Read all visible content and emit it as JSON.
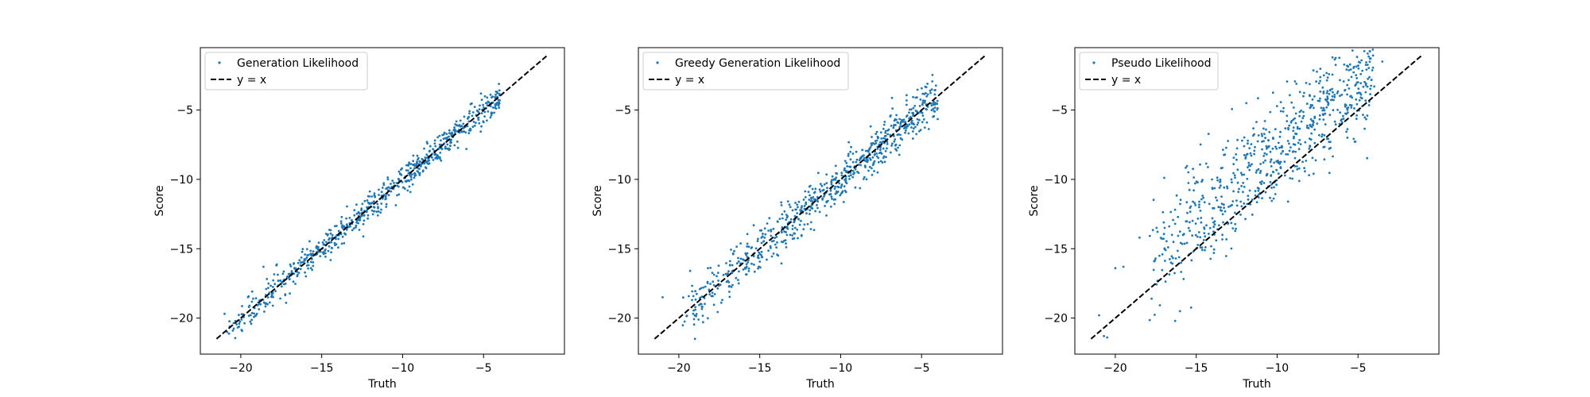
{
  "chart_data": [
    {
      "type": "scatter",
      "xlabel": "Truth",
      "ylabel": "Score",
      "xlim": [
        -22.5,
        0.0
      ],
      "ylim": [
        -22.6,
        -0.5
      ],
      "xticks": [
        -20,
        -15,
        -10,
        -5
      ],
      "yticks": [
        -20,
        -15,
        -10,
        -5
      ],
      "legend_placement": "upper-left",
      "series": [
        {
          "name": "Generation Likelihood",
          "kind": "scatter",
          "color": "#1f77b4",
          "x_range": [
            -21,
            -4
          ],
          "slope": 1.0,
          "offset": 0.0,
          "noise": 0.5
        },
        {
          "name": "y = x",
          "kind": "line",
          "color": "#000000",
          "style": "dashed",
          "x": [
            -21.5,
            -1.0
          ],
          "y": [
            -21.5,
            -1.0
          ]
        }
      ],
      "outliers": [
        {
          "x": -21.0,
          "y": -19.7
        },
        {
          "x": -18.6,
          "y": -16.3
        },
        {
          "x": -17.8,
          "y": -16.2
        },
        {
          "x": -17.2,
          "y": -18.9
        },
        {
          "x": -19.5,
          "y": -19.2
        },
        {
          "x": -4.0,
          "y": -4.3
        },
        {
          "x": -4.8,
          "y": -4.5
        }
      ]
    },
    {
      "type": "scatter",
      "xlabel": "Truth",
      "ylabel": "Score",
      "xlim": [
        -22.5,
        0.0
      ],
      "ylim": [
        -22.6,
        -0.5
      ],
      "xticks": [
        -20,
        -15,
        -10,
        -5
      ],
      "yticks": [
        -20,
        -15,
        -10,
        -5
      ],
      "legend_placement": "upper-left",
      "series": [
        {
          "name": "Greedy Generation Likelihood",
          "kind": "scatter",
          "color": "#1f77b4",
          "x_range": [
            -20,
            -4
          ],
          "slope": 1.0,
          "offset": 0.0,
          "noise": 0.8
        },
        {
          "name": "y = x",
          "kind": "line",
          "color": "#000000",
          "style": "dashed",
          "x": [
            -21.5,
            -1.0
          ],
          "y": [
            -21.5,
            -1.0
          ]
        }
      ],
      "outliers": [
        {
          "x": -21.0,
          "y": -18.5
        },
        {
          "x": -19.0,
          "y": -21.5
        },
        {
          "x": -18.5,
          "y": -20.3
        },
        {
          "x": -19.3,
          "y": -16.6
        },
        {
          "x": -18.2,
          "y": -16.4
        },
        {
          "x": -16.3,
          "y": -17.5
        }
      ]
    },
    {
      "type": "scatter",
      "xlabel": "Truth",
      "ylabel": "Score",
      "xlim": [
        -22.5,
        0.0
      ],
      "ylim": [
        -22.6,
        -0.5
      ],
      "xticks": [
        -20,
        -15,
        -10,
        -5
      ],
      "yticks": [
        -20,
        -15,
        -10,
        -5
      ],
      "legend_placement": "upper-left",
      "series": [
        {
          "name": "Pseudo Likelihood",
          "kind": "scatter",
          "color": "#1f77b4",
          "x_range": [
            -18,
            -4
          ],
          "slope": 1.0,
          "offset": 2.0,
          "noise": 1.9
        },
        {
          "name": "y = x",
          "kind": "line",
          "color": "#000000",
          "style": "dashed",
          "x": [
            -21.5,
            -1.0
          ],
          "y": [
            -21.5,
            -1.0
          ]
        }
      ],
      "outliers": [
        {
          "x": -21.0,
          "y": -19.8
        },
        {
          "x": -20.7,
          "y": -21.3
        },
        {
          "x": -20.5,
          "y": -21.4
        },
        {
          "x": -19.5,
          "y": -16.3
        },
        {
          "x": -20.0,
          "y": -16.4
        },
        {
          "x": -18.5,
          "y": -14.2
        },
        {
          "x": -16.0,
          "y": -19.5
        },
        {
          "x": -16.3,
          "y": -20.2
        },
        {
          "x": -3.5,
          "y": -1.5
        },
        {
          "x": -4.0,
          "y": -3.3
        },
        {
          "x": -5.0,
          "y": -3.0
        }
      ]
    }
  ]
}
